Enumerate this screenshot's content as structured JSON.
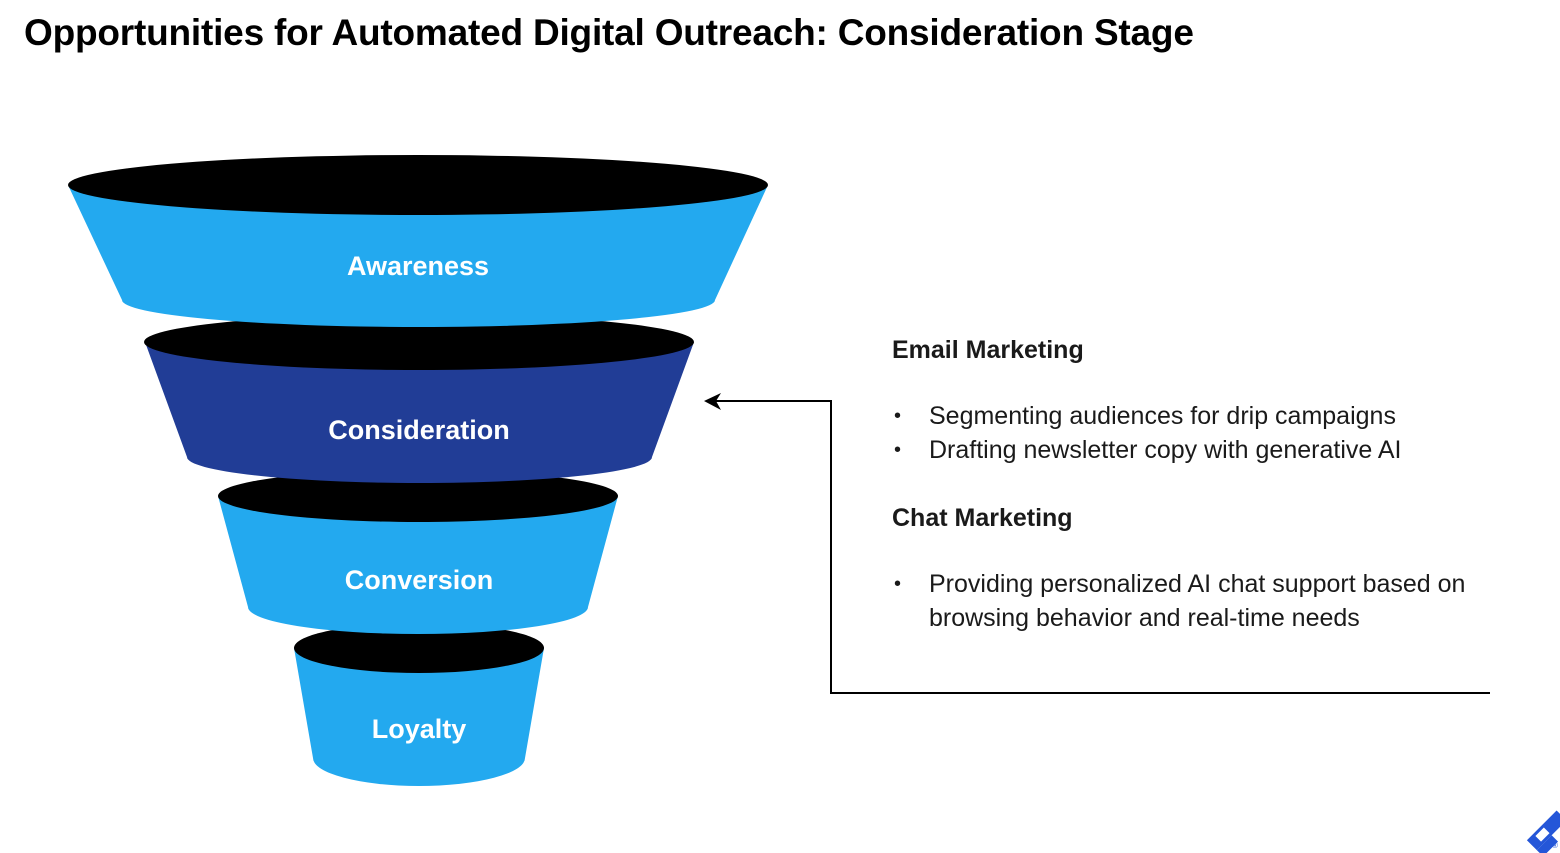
{
  "title": "Opportunities for Automated Digital Outreach: Consideration Stage",
  "colors": {
    "stage": "#23a9ef",
    "highlighted_stage": "#213d96",
    "rim": "#000000",
    "logo": "#2456d8"
  },
  "funnel": {
    "stages": [
      {
        "label": "Awareness",
        "highlighted": false
      },
      {
        "label": "Consideration",
        "highlighted": true
      },
      {
        "label": "Conversion",
        "highlighted": false
      },
      {
        "label": "Loyalty",
        "highlighted": false
      }
    ]
  },
  "panel": {
    "sections": [
      {
        "heading": "Email Marketing",
        "items": [
          "Segmenting audiences for drip campaigns",
          "Drafting newsletter copy with generative AI"
        ]
      },
      {
        "heading": "Chat Marketing",
        "items": [
          "Providing personalized AI chat support based on browsing behavior and real-time needs"
        ]
      }
    ]
  },
  "logo": {
    "icon": "toptal-logo"
  }
}
